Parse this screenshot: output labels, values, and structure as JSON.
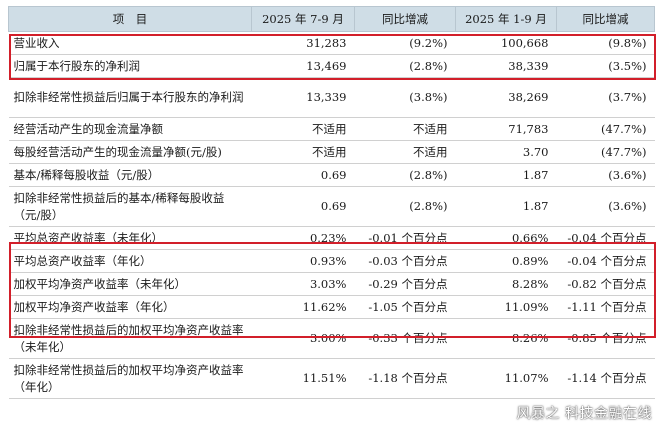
{
  "table": {
    "headers": [
      "项　目",
      "2025 年 7-9 月",
      "同比增减",
      "2025 年 1-9 月",
      "同比增减"
    ],
    "rows": [
      {
        "label": "营业收入",
        "q3": "31,283",
        "q3_yoy": "(9.2%)",
        "ytd": "100,668",
        "ytd_yoy": "(9.8%)"
      },
      {
        "label": "归属于本行股东的净利润",
        "q3": "13,469",
        "q3_yoy": "(2.8%)",
        "ytd": "38,339",
        "ytd_yoy": "(3.5%)"
      },
      {
        "label": "扣除非经常性损益后归属于本行股东的净利润",
        "q3": "13,339",
        "q3_yoy": "(3.8%)",
        "ytd": "38,269",
        "ytd_yoy": "(3.7%)"
      },
      {
        "label": "经营活动产生的现金流量净额",
        "q3": "不适用",
        "q3_yoy": "不适用",
        "ytd": "71,783",
        "ytd_yoy": "(47.7%)"
      },
      {
        "label": "每股经营活动产生的现金流量净额(元/股)",
        "q3": "不适用",
        "q3_yoy": "不适用",
        "ytd": "3.70",
        "ytd_yoy": "(47.7%)"
      },
      {
        "label": "基本/稀释每股收益（元/股）",
        "q3": "0.69",
        "q3_yoy": "(2.8%)",
        "ytd": "1.87",
        "ytd_yoy": "(3.6%)"
      },
      {
        "label": "扣除非经常性损益后的基本/稀释每股收益（元/股）",
        "q3": "0.69",
        "q3_yoy": "(2.8%)",
        "ytd": "1.87",
        "ytd_yoy": "(3.6%)"
      },
      {
        "label": "平均总资产收益率（未年化）",
        "q3": "0.23%",
        "q3_yoy": "-0.01 个百分点",
        "ytd": "0.66%",
        "ytd_yoy": "-0.04 个百分点"
      },
      {
        "label": "平均总资产收益率（年化）",
        "q3": "0.93%",
        "q3_yoy": "-0.03 个百分点",
        "ytd": "0.89%",
        "ytd_yoy": "-0.04 个百分点"
      },
      {
        "label": "加权平均净资产收益率（未年化）",
        "q3": "3.03%",
        "q3_yoy": "-0.29 个百分点",
        "ytd": "8.28%",
        "ytd_yoy": "-0.82 个百分点"
      },
      {
        "label": "加权平均净资产收益率（年化）",
        "q3": "11.62%",
        "q3_yoy": "-1.05 个百分点",
        "ytd": "11.09%",
        "ytd_yoy": "-1.11 个百分点"
      },
      {
        "label": "扣除非经常性损益后的加权平均净资产收益率（未年化）",
        "q3": "3.00%",
        "q3_yoy": "-0.33 个百分点",
        "ytd": "8.26%",
        "ytd_yoy": "-0.85 个百分点"
      },
      {
        "label": "扣除非经常性损益后的加权平均净资产收益率（年化）",
        "q3": "11.51%",
        "q3_yoy": "-1.18 个百分点",
        "ytd": "11.07%",
        "ytd_yoy": "-1.14 个百分点"
      }
    ]
  },
  "watermark": "风暴之 科技金融在线",
  "colors": {
    "header_bg": "#cfdde6",
    "highlight_border": "#d21f2a"
  }
}
